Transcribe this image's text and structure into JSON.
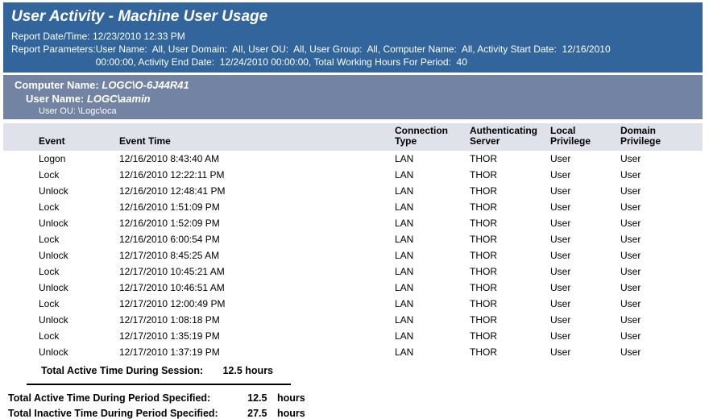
{
  "colors": {
    "header_bg": "#31659B",
    "group_bg": "#7383A3",
    "table_header_bg": "#DFE1EB"
  },
  "report": {
    "title": "User Activity - Machine User Usage",
    "date_label": "Report Date/Time:",
    "date_value": "12/23/2010 12:33 PM",
    "params_label": "Report Parameters:",
    "params_value": "User Name:  All, User Domain:  All, User OU:  All, User Group:  All, Computer Name:  All, Activity Start Date:  12/16/2010\n00:00:00, Activity End Date:  12/24/2010 00:00:00, Total Working Hours For Period:  40"
  },
  "group": {
    "computer_label": "Computer Name:",
    "computer_value": "LOGC\\O-6J44R41",
    "user_label": "User Name:",
    "user_value": "LOGC\\aamin",
    "ou_label": "User OU:",
    "ou_value": "\\Logc\\oca"
  },
  "table": {
    "columns": [
      "Event",
      "Event Time",
      "Connection\nType",
      "Authenticating\nServer",
      "Local\nPrivilege",
      "Domain\nPrivilege"
    ],
    "rows": [
      [
        "Logon",
        "12/16/2010 8:43:40 AM",
        "LAN",
        "THOR",
        "User",
        "User"
      ],
      [
        "Lock",
        "12/16/2010 12:22:11 PM",
        "LAN",
        "THOR",
        "User",
        "User"
      ],
      [
        "Unlock",
        "12/16/2010 12:48:41 PM",
        "LAN",
        "THOR",
        "User",
        "User"
      ],
      [
        "Lock",
        "12/16/2010 1:51:09 PM",
        "LAN",
        "THOR",
        "User",
        "User"
      ],
      [
        "Unlock",
        "12/16/2010 1:52:09 PM",
        "LAN",
        "THOR",
        "User",
        "User"
      ],
      [
        "Lock",
        "12/16/2010 6:00:54 PM",
        "LAN",
        "THOR",
        "User",
        "User"
      ],
      [
        "Unlock",
        "12/17/2010 8:45:25 AM",
        "LAN",
        "THOR",
        "User",
        "User"
      ],
      [
        "Lock",
        "12/17/2010 10:45:21 AM",
        "LAN",
        "THOR",
        "User",
        "User"
      ],
      [
        "Unlock",
        "12/17/2010 10:46:51 AM",
        "LAN",
        "THOR",
        "User",
        "User"
      ],
      [
        "Lock",
        "12/17/2010 12:00:49 PM",
        "LAN",
        "THOR",
        "User",
        "User"
      ],
      [
        "Unlock",
        "12/17/2010 1:08:18 PM",
        "LAN",
        "THOR",
        "User",
        "User"
      ],
      [
        "Lock",
        "12/17/2010 1:35:19 PM",
        "LAN",
        "THOR",
        "User",
        "User"
      ],
      [
        "Unlock",
        "12/17/2010 1:37:19 PM",
        "LAN",
        "THOR",
        "User",
        "User"
      ]
    ]
  },
  "totals": {
    "session_label": "Total Active Time During Session:",
    "session_value": "12.5 hours",
    "active_label": "Total Active Time During Period Specified:",
    "active_value": "12.5",
    "active_unit": "hours",
    "inactive_label": "Total Inactive Time During Period Specified:",
    "inactive_value": "27.5",
    "inactive_unit": "hours"
  }
}
